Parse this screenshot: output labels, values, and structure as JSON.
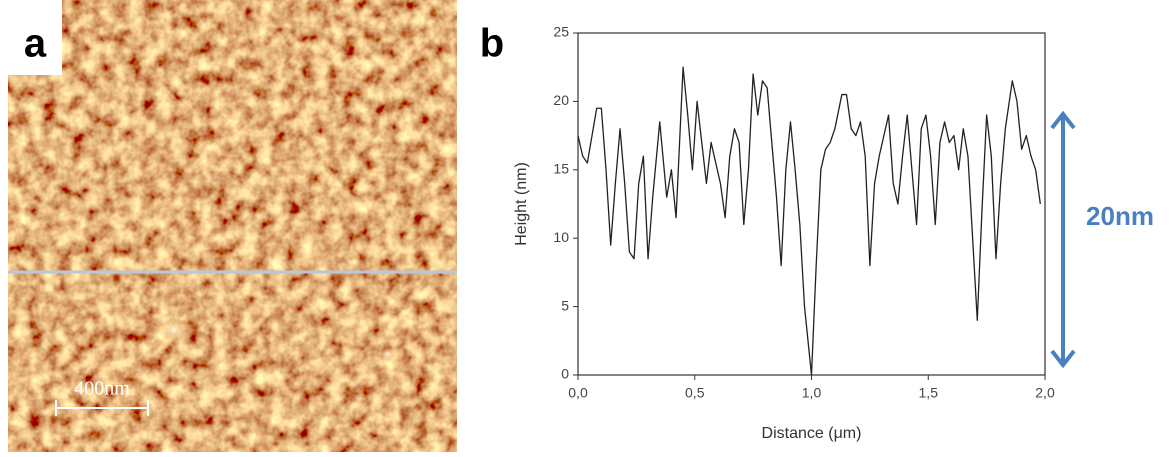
{
  "annotations": {
    "panel_a": "a",
    "panel_b": "b",
    "scale_bar": "400nm",
    "range": "20nm"
  },
  "chart_data": {
    "type": "line",
    "x_label": "Distance (μm)",
    "y_label": "Height (nm)",
    "x": [
      0.0,
      0.02,
      0.04,
      0.06,
      0.08,
      0.1,
      0.12,
      0.14,
      0.16,
      0.18,
      0.2,
      0.22,
      0.24,
      0.26,
      0.28,
      0.3,
      0.32,
      0.35,
      0.38,
      0.4,
      0.42,
      0.45,
      0.47,
      0.49,
      0.51,
      0.53,
      0.55,
      0.57,
      0.59,
      0.61,
      0.63,
      0.65,
      0.67,
      0.69,
      0.71,
      0.73,
      0.75,
      0.77,
      0.79,
      0.81,
      0.83,
      0.85,
      0.87,
      0.89,
      0.91,
      0.93,
      0.95,
      0.97,
      1.0,
      1.02,
      1.04,
      1.06,
      1.08,
      1.1,
      1.13,
      1.15,
      1.17,
      1.19,
      1.21,
      1.23,
      1.25,
      1.27,
      1.29,
      1.31,
      1.33,
      1.35,
      1.37,
      1.39,
      1.41,
      1.43,
      1.45,
      1.47,
      1.49,
      1.51,
      1.53,
      1.55,
      1.57,
      1.59,
      1.61,
      1.63,
      1.65,
      1.67,
      1.69,
      1.71,
      1.73,
      1.75,
      1.77,
      1.79,
      1.81,
      1.83,
      1.86,
      1.88,
      1.9,
      1.92,
      1.94,
      1.96,
      1.98
    ],
    "values": [
      17.5,
      16,
      15.5,
      17.5,
      19.5,
      19.5,
      15,
      9.5,
      14,
      18,
      14,
      9,
      8.5,
      14,
      16,
      8.5,
      13,
      18.5,
      13,
      15,
      11.5,
      22.5,
      19,
      15,
      20,
      17,
      14,
      17,
      15.5,
      14,
      11.5,
      16,
      18,
      17,
      11,
      15,
      22,
      19,
      21.5,
      21,
      17,
      13,
      8,
      15,
      18.5,
      15,
      11,
      5,
      0,
      8,
      15,
      16.5,
      17,
      18,
      20.5,
      20.5,
      18,
      17.5,
      18.5,
      16,
      8,
      14,
      16,
      17.5,
      19,
      14,
      12.5,
      16,
      19,
      15,
      11,
      18,
      19,
      16,
      11,
      17,
      18.5,
      17,
      17.5,
      15,
      18,
      16,
      10,
      4,
      12,
      19,
      16,
      8.5,
      14,
      18,
      21.5,
      20,
      16.5,
      17.5,
      16,
      15,
      12.5
    ],
    "color": "#222222",
    "xlim": [
      0,
      2
    ],
    "ylim": [
      0,
      25
    ],
    "xticks": [
      {
        "value": 0,
        "label": "0,0"
      },
      {
        "value": 0.5,
        "label": "0,5"
      },
      {
        "value": 1,
        "label": "1,0"
      },
      {
        "value": 1.5,
        "label": "1,5"
      },
      {
        "value": 2,
        "label": "2,0"
      }
    ],
    "yticks": [
      0,
      5,
      10,
      15,
      20,
      25
    ]
  }
}
